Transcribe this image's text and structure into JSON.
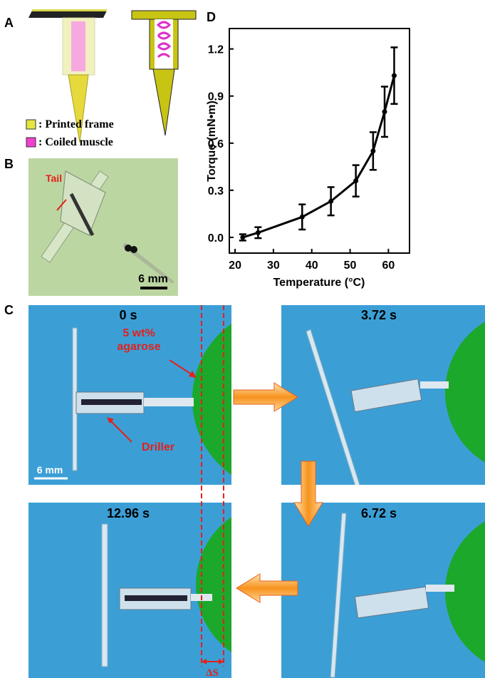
{
  "panel_labels": [
    "A",
    "B",
    "C",
    "D"
  ],
  "panel_a": {
    "legend": [
      ": Printed frame",
      ": Coiled muscle"
    ]
  },
  "panel_b": {
    "annotation": "Tail",
    "scale_bar": "6 mm"
  },
  "panel_c": {
    "frames": [
      "0 s",
      "3.72 s",
      "6.72 s",
      "12.96 s"
    ],
    "annotation_lines": [
      "5 wt%",
      "agarose"
    ],
    "driller": "Driller",
    "scale_bar": "6 mm",
    "displacement": "ΔS"
  },
  "chart_data": {
    "type": "line",
    "x_label": "Temperature (°C)",
    "y_label": "Torque (mN•m)",
    "x": [
      22,
      26,
      37.5,
      45,
      51.5,
      56,
      59,
      61.5
    ],
    "values": [
      0.0,
      0.03,
      0.13,
      0.23,
      0.36,
      0.55,
      0.8,
      1.03
    ],
    "errors": [
      0.02,
      0.035,
      0.08,
      0.09,
      0.1,
      0.12,
      0.16,
      0.18
    ],
    "color": "#000000",
    "xlim": [
      18.5,
      65.5
    ],
    "ylim": [
      -0.1,
      1.33
    ],
    "xticks": [
      20,
      30,
      40,
      50,
      60
    ],
    "yticks": [
      {
        "value": 0,
        "label": "0.0"
      },
      0.3,
      0.6,
      0.9,
      1.2
    ]
  }
}
